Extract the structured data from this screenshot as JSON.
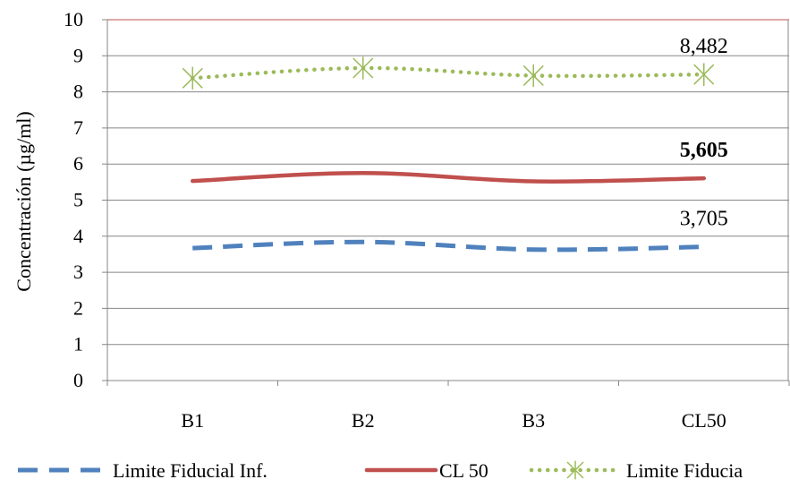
{
  "chart_data": {
    "type": "line",
    "categories": [
      "B1",
      "B2",
      "B3",
      "CL50"
    ],
    "ylabel": "Concentración (µg/ml)",
    "xlabel": "",
    "ylim": [
      0,
      10
    ],
    "yticks": [
      "0",
      "1",
      "2",
      "3",
      "4",
      "5",
      "6",
      "7",
      "8",
      "9",
      "10"
    ],
    "grid": "horizontal",
    "legend_position": "bottom",
    "series": [
      {
        "name": "Limite Fiducial Inf.",
        "values": [
          3.67,
          3.84,
          3.63,
          3.705
        ],
        "color": "#4f81bd",
        "style": "dashed",
        "end_label": "3,705"
      },
      {
        "name": "CL 50",
        "values": [
          5.53,
          5.75,
          5.52,
          5.605
        ],
        "color": "#c0504d",
        "style": "solid",
        "end_label": "5,605"
      },
      {
        "name": "Limite Fiducial Sup.",
        "legend_text": "Limite Fiducia",
        "values": [
          8.38,
          8.66,
          8.45,
          8.482
        ],
        "color": "#9bbb59",
        "style": "dotted",
        "marker": "star",
        "end_label": "8,482"
      }
    ]
  }
}
